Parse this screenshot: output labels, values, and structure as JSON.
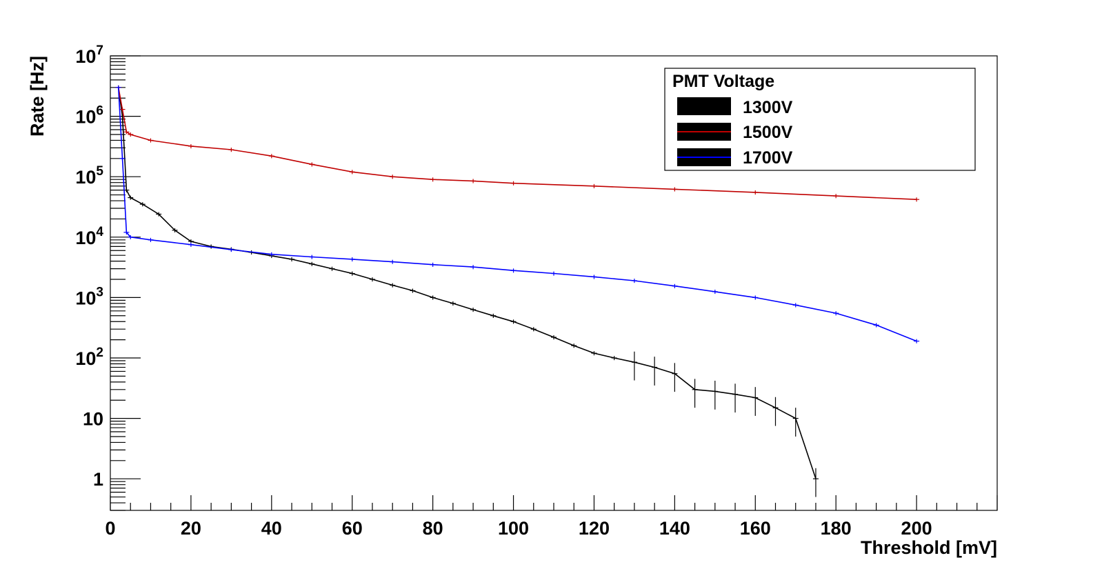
{
  "chart_data": {
    "type": "line",
    "title": "",
    "xlabel": "Threshold [mV]",
    "ylabel": "Rate [Hz]",
    "xlim": [
      0,
      220
    ],
    "ylim": [
      0.3,
      10000000
    ],
    "yscale": "log",
    "grid": false,
    "x_ticks": [
      0,
      20,
      40,
      60,
      80,
      100,
      120,
      140,
      160,
      180,
      200
    ],
    "x_tick_labels": [
      "0",
      "20",
      "40",
      "60",
      "80",
      "100",
      "120",
      "140",
      "160",
      "180",
      "200"
    ],
    "y_tick_labels": [
      {
        "value": 1,
        "base": "1",
        "exp": ""
      },
      {
        "value": 10,
        "base": "10",
        "exp": ""
      },
      {
        "value": 100,
        "base": "10",
        "exp": "2"
      },
      {
        "value": 1000,
        "base": "10",
        "exp": "3"
      },
      {
        "value": 10000,
        "base": "10",
        "exp": "4"
      },
      {
        "value": 100000,
        "base": "10",
        "exp": "5"
      },
      {
        "value": 1000000,
        "base": "10",
        "exp": "6"
      },
      {
        "value": 10000000,
        "base": "10",
        "exp": "7"
      }
    ],
    "legend": {
      "title": "PMT Voltage",
      "position": "top-right",
      "entries": [
        "1300V",
        "1500V",
        "1700V"
      ]
    },
    "series": [
      {
        "name": "1300V",
        "color": "#000000",
        "x": [
          2,
          3,
          4,
          5,
          8,
          12,
          16,
          20,
          25,
          30,
          35,
          40,
          45,
          50,
          55,
          60,
          65,
          70,
          75,
          80,
          85,
          90,
          95,
          100,
          105,
          110,
          115,
          120,
          125,
          130,
          135,
          140,
          145,
          150,
          155,
          160,
          165,
          170,
          175
        ],
        "y": [
          3000000,
          1000000,
          60000,
          45000,
          35000,
          24000,
          13000,
          8500,
          7000,
          6300,
          5600,
          4900,
          4300,
          3600,
          3000,
          2500,
          2000,
          1600,
          1300,
          1000,
          800,
          630,
          500,
          400,
          300,
          220,
          160,
          120,
          100,
          85,
          70,
          55,
          30,
          28,
          25,
          22,
          15,
          10,
          1
        ]
      },
      {
        "name": "1500V",
        "color": "#c00000",
        "x": [
          2,
          3,
          4,
          5,
          10,
          20,
          30,
          40,
          50,
          60,
          70,
          80,
          90,
          100,
          120,
          140,
          160,
          180,
          200
        ],
        "y": [
          3000000,
          1300000,
          550000,
          500000,
          400000,
          320000,
          280000,
          220000,
          160000,
          120000,
          100000,
          90000,
          85000,
          78000,
          70000,
          62000,
          55000,
          48000,
          42000
        ]
      },
      {
        "name": "1700V",
        "color": "#0000ff",
        "x": [
          2,
          3,
          4,
          5,
          10,
          20,
          30,
          40,
          50,
          60,
          70,
          80,
          90,
          100,
          110,
          120,
          130,
          140,
          150,
          160,
          170,
          180,
          190,
          200
        ],
        "y": [
          3000000,
          200000,
          12000,
          10000,
          9000,
          7500,
          6200,
          5200,
          4700,
          4300,
          3900,
          3500,
          3200,
          2800,
          2500,
          2200,
          1900,
          1550,
          1250,
          1000,
          750,
          550,
          350,
          190
        ]
      }
    ]
  }
}
